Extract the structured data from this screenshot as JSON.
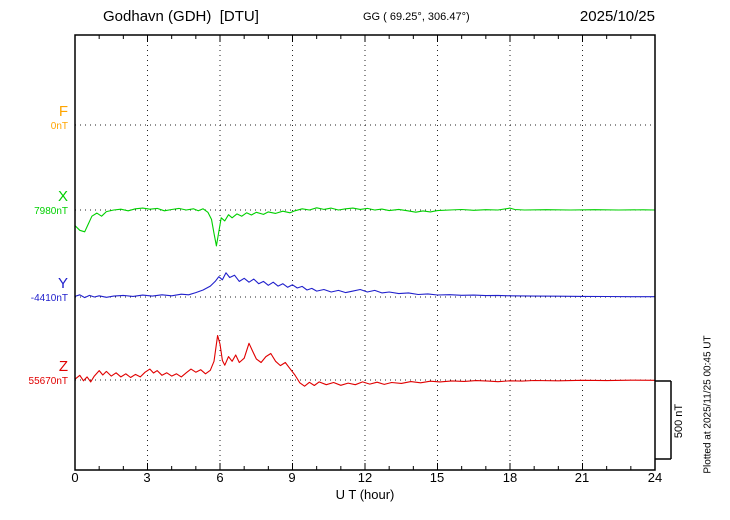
{
  "header": {
    "station": "Godhavn (GDH)  [DTU]",
    "coords": "GG ( 69.25°, 306.47°)",
    "date": "2025/10/25"
  },
  "x_axis": {
    "label": "U T (hour)",
    "ticks": [
      "0",
      "3",
      "6",
      "9",
      "12",
      "15",
      "18",
      "21",
      "24"
    ]
  },
  "scale_bar": {
    "label": "500 nT",
    "nT": 500
  },
  "footer_note": "Plotted at 2025/11/25 00:45 UT",
  "chart_data": {
    "type": "line",
    "title": "Godhavn (GDH) [DTU] magnetogram 2025/10/25",
    "xlabel": "U T (hour)",
    "x_range": [
      0,
      24
    ],
    "grid": "dotted",
    "scale_nT": 500,
    "series": [
      {
        "name": "F",
        "color": "#ffa500",
        "baseline_label": "0nT",
        "points": []
      },
      {
        "name": "X",
        "color": "#00d000",
        "baseline_label": "7980nT",
        "points": [
          [
            0,
            -100
          ],
          [
            0.2,
            -130
          ],
          [
            0.4,
            -140
          ],
          [
            0.55,
            -90
          ],
          [
            0.7,
            -40
          ],
          [
            0.9,
            -20
          ],
          [
            1.1,
            -40
          ],
          [
            1.3,
            -10
          ],
          [
            1.6,
            0
          ],
          [
            1.9,
            5
          ],
          [
            2.2,
            -5
          ],
          [
            2.5,
            8
          ],
          [
            2.8,
            12
          ],
          [
            3.1,
            5
          ],
          [
            3.4,
            10
          ],
          [
            3.7,
            -5
          ],
          [
            4,
            3
          ],
          [
            4.3,
            10
          ],
          [
            4.6,
            0
          ],
          [
            4.9,
            8
          ],
          [
            5.1,
            -5
          ],
          [
            5.3,
            8
          ],
          [
            5.5,
            -15
          ],
          [
            5.65,
            -60
          ],
          [
            5.75,
            -150
          ],
          [
            5.85,
            -230
          ],
          [
            5.95,
            -140
          ],
          [
            6.05,
            -50
          ],
          [
            6.2,
            -70
          ],
          [
            6.35,
            -30
          ],
          [
            6.5,
            -50
          ],
          [
            6.7,
            -25
          ],
          [
            6.9,
            -40
          ],
          [
            7.1,
            -18
          ],
          [
            7.3,
            -32
          ],
          [
            7.5,
            -15
          ],
          [
            7.8,
            -28
          ],
          [
            8,
            -12
          ],
          [
            8.3,
            -22
          ],
          [
            8.6,
            -8
          ],
          [
            8.9,
            -18
          ],
          [
            9.1,
            -5
          ],
          [
            9.4,
            8
          ],
          [
            9.7,
            0
          ],
          [
            10,
            14
          ],
          [
            10.3,
            4
          ],
          [
            10.6,
            12
          ],
          [
            10.9,
            0
          ],
          [
            11.2,
            8
          ],
          [
            11.5,
            12
          ],
          [
            11.8,
            4
          ],
          [
            12.1,
            10
          ],
          [
            12.4,
            0
          ],
          [
            12.7,
            6
          ],
          [
            13,
            -4
          ],
          [
            13.4,
            4
          ],
          [
            13.8,
            -6
          ],
          [
            14.1,
            -14
          ],
          [
            14.4,
            -6
          ],
          [
            14.7,
            -12
          ],
          [
            15,
            -4
          ],
          [
            15.5,
            0
          ],
          [
            16,
            3
          ],
          [
            16.5,
            -2
          ],
          [
            17,
            2
          ],
          [
            17.5,
            0
          ],
          [
            18,
            12
          ],
          [
            18.2,
            3
          ],
          [
            18.6,
            0
          ],
          [
            19.5,
            2
          ],
          [
            20.5,
            0
          ],
          [
            21.5,
            2
          ],
          [
            22.5,
            0
          ],
          [
            23.5,
            1
          ],
          [
            24,
            0
          ]
        ]
      },
      {
        "name": "Y",
        "color": "#2020cc",
        "baseline_label": "-4410nT",
        "points": [
          [
            0,
            4
          ],
          [
            0.2,
            14
          ],
          [
            0.4,
            -4
          ],
          [
            0.6,
            10
          ],
          [
            0.8,
            0
          ],
          [
            1,
            8
          ],
          [
            1.3,
            -2
          ],
          [
            1.6,
            6
          ],
          [
            2,
            10
          ],
          [
            2.4,
            4
          ],
          [
            2.8,
            12
          ],
          [
            3.2,
            6
          ],
          [
            3.6,
            14
          ],
          [
            4,
            8
          ],
          [
            4.4,
            18
          ],
          [
            4.7,
            14
          ],
          [
            5,
            28
          ],
          [
            5.3,
            45
          ],
          [
            5.6,
            70
          ],
          [
            5.8,
            100
          ],
          [
            5.95,
            130
          ],
          [
            6.1,
            110
          ],
          [
            6.25,
            155
          ],
          [
            6.4,
            125
          ],
          [
            6.6,
            140
          ],
          [
            6.8,
            100
          ],
          [
            7,
            120
          ],
          [
            7.2,
            95
          ],
          [
            7.4,
            115
          ],
          [
            7.6,
            85
          ],
          [
            7.8,
            100
          ],
          [
            8,
            75
          ],
          [
            8.2,
            95
          ],
          [
            8.4,
            70
          ],
          [
            8.6,
            85
          ],
          [
            8.8,
            62
          ],
          [
            9,
            78
          ],
          [
            9.2,
            58
          ],
          [
            9.4,
            68
          ],
          [
            9.6,
            45
          ],
          [
            9.8,
            55
          ],
          [
            10,
            38
          ],
          [
            10.3,
            48
          ],
          [
            10.6,
            32
          ],
          [
            10.9,
            42
          ],
          [
            11.2,
            28
          ],
          [
            11.5,
            38
          ],
          [
            11.8,
            48
          ],
          [
            12.1,
            32
          ],
          [
            12.4,
            42
          ],
          [
            12.7,
            26
          ],
          [
            13,
            32
          ],
          [
            13.4,
            22
          ],
          [
            13.8,
            26
          ],
          [
            14.2,
            16
          ],
          [
            14.6,
            20
          ],
          [
            15,
            13
          ],
          [
            15.5,
            15
          ],
          [
            16,
            11
          ],
          [
            16.5,
            12
          ],
          [
            17,
            9
          ],
          [
            17.5,
            10
          ],
          [
            18,
            8
          ],
          [
            19,
            6
          ],
          [
            20,
            5
          ],
          [
            21,
            4
          ],
          [
            22,
            3
          ],
          [
            23,
            2
          ],
          [
            24,
            2
          ]
        ]
      },
      {
        "name": "Z",
        "color": "#e00000",
        "baseline_label": "55670nT",
        "points": [
          [
            0,
            5
          ],
          [
            0.2,
            30
          ],
          [
            0.35,
            -5
          ],
          [
            0.5,
            20
          ],
          [
            0.65,
            -12
          ],
          [
            0.8,
            25
          ],
          [
            1,
            60
          ],
          [
            1.15,
            32
          ],
          [
            1.3,
            55
          ],
          [
            1.5,
            25
          ],
          [
            1.7,
            46
          ],
          [
            1.9,
            20
          ],
          [
            2.1,
            40
          ],
          [
            2.3,
            16
          ],
          [
            2.5,
            36
          ],
          [
            2.7,
            20
          ],
          [
            2.9,
            50
          ],
          [
            3.1,
            70
          ],
          [
            3.25,
            45
          ],
          [
            3.4,
            60
          ],
          [
            3.6,
            30
          ],
          [
            3.8,
            46
          ],
          [
            4,
            25
          ],
          [
            4.2,
            40
          ],
          [
            4.4,
            20
          ],
          [
            4.6,
            46
          ],
          [
            4.8,
            70
          ],
          [
            5,
            50
          ],
          [
            5.2,
            66
          ],
          [
            5.4,
            40
          ],
          [
            5.6,
            62
          ],
          [
            5.75,
            120
          ],
          [
            5.9,
            285
          ],
          [
            6,
            230
          ],
          [
            6.1,
            125
          ],
          [
            6.2,
            95
          ],
          [
            6.35,
            150
          ],
          [
            6.5,
            120
          ],
          [
            6.65,
            160
          ],
          [
            6.8,
            112
          ],
          [
            7,
            140
          ],
          [
            7.2,
            235
          ],
          [
            7.35,
            185
          ],
          [
            7.5,
            135
          ],
          [
            7.7,
            112
          ],
          [
            7.9,
            150
          ],
          [
            8.1,
            170
          ],
          [
            8.3,
            120
          ],
          [
            8.5,
            92
          ],
          [
            8.7,
            112
          ],
          [
            8.9,
            72
          ],
          [
            9.1,
            32
          ],
          [
            9.3,
            -18
          ],
          [
            9.5,
            -40
          ],
          [
            9.7,
            -15
          ],
          [
            9.9,
            -35
          ],
          [
            10.1,
            -12
          ],
          [
            10.4,
            -30
          ],
          [
            10.7,
            -16
          ],
          [
            11,
            -34
          ],
          [
            11.3,
            -20
          ],
          [
            11.6,
            -30
          ],
          [
            11.9,
            -12
          ],
          [
            12.2,
            -26
          ],
          [
            12.5,
            -14
          ],
          [
            12.8,
            -28
          ],
          [
            13.1,
            -16
          ],
          [
            13.5,
            -22
          ],
          [
            13.9,
            -10
          ],
          [
            14.3,
            -18
          ],
          [
            14.7,
            -8
          ],
          [
            15.1,
            -12
          ],
          [
            15.6,
            -6
          ],
          [
            16.1,
            -9
          ],
          [
            16.6,
            -4
          ],
          [
            17.1,
            -7
          ],
          [
            17.5,
            -11
          ],
          [
            18,
            -5
          ],
          [
            18.5,
            -7
          ],
          [
            19,
            -3
          ],
          [
            20,
            -5
          ],
          [
            21,
            -2
          ],
          [
            22,
            -4
          ],
          [
            23,
            -1
          ],
          [
            24,
            -2
          ]
        ]
      }
    ]
  }
}
